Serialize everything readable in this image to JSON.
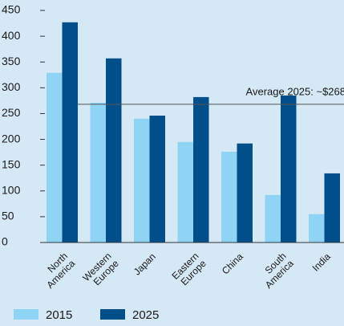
{
  "chart_data": {
    "type": "bar",
    "categories": [
      "North America",
      "Western Europe",
      "Japan",
      "Eastern Europe",
      "China",
      "South America",
      "India"
    ],
    "series": [
      {
        "name": "2015",
        "color": "#8fd3f5",
        "values": [
          329,
          271,
          240,
          195,
          176,
          92,
          55
        ]
      },
      {
        "name": "2025",
        "color": "#004e8a",
        "values": [
          427,
          357,
          246,
          282,
          192,
          285,
          134
        ]
      }
    ],
    "ylim": [
      0,
      450
    ],
    "yticks": [
      0,
      50,
      100,
      150,
      200,
      250,
      300,
      350,
      400,
      450
    ],
    "annotation": {
      "text": "Average 2025: ~$268",
      "value": 268
    }
  }
}
